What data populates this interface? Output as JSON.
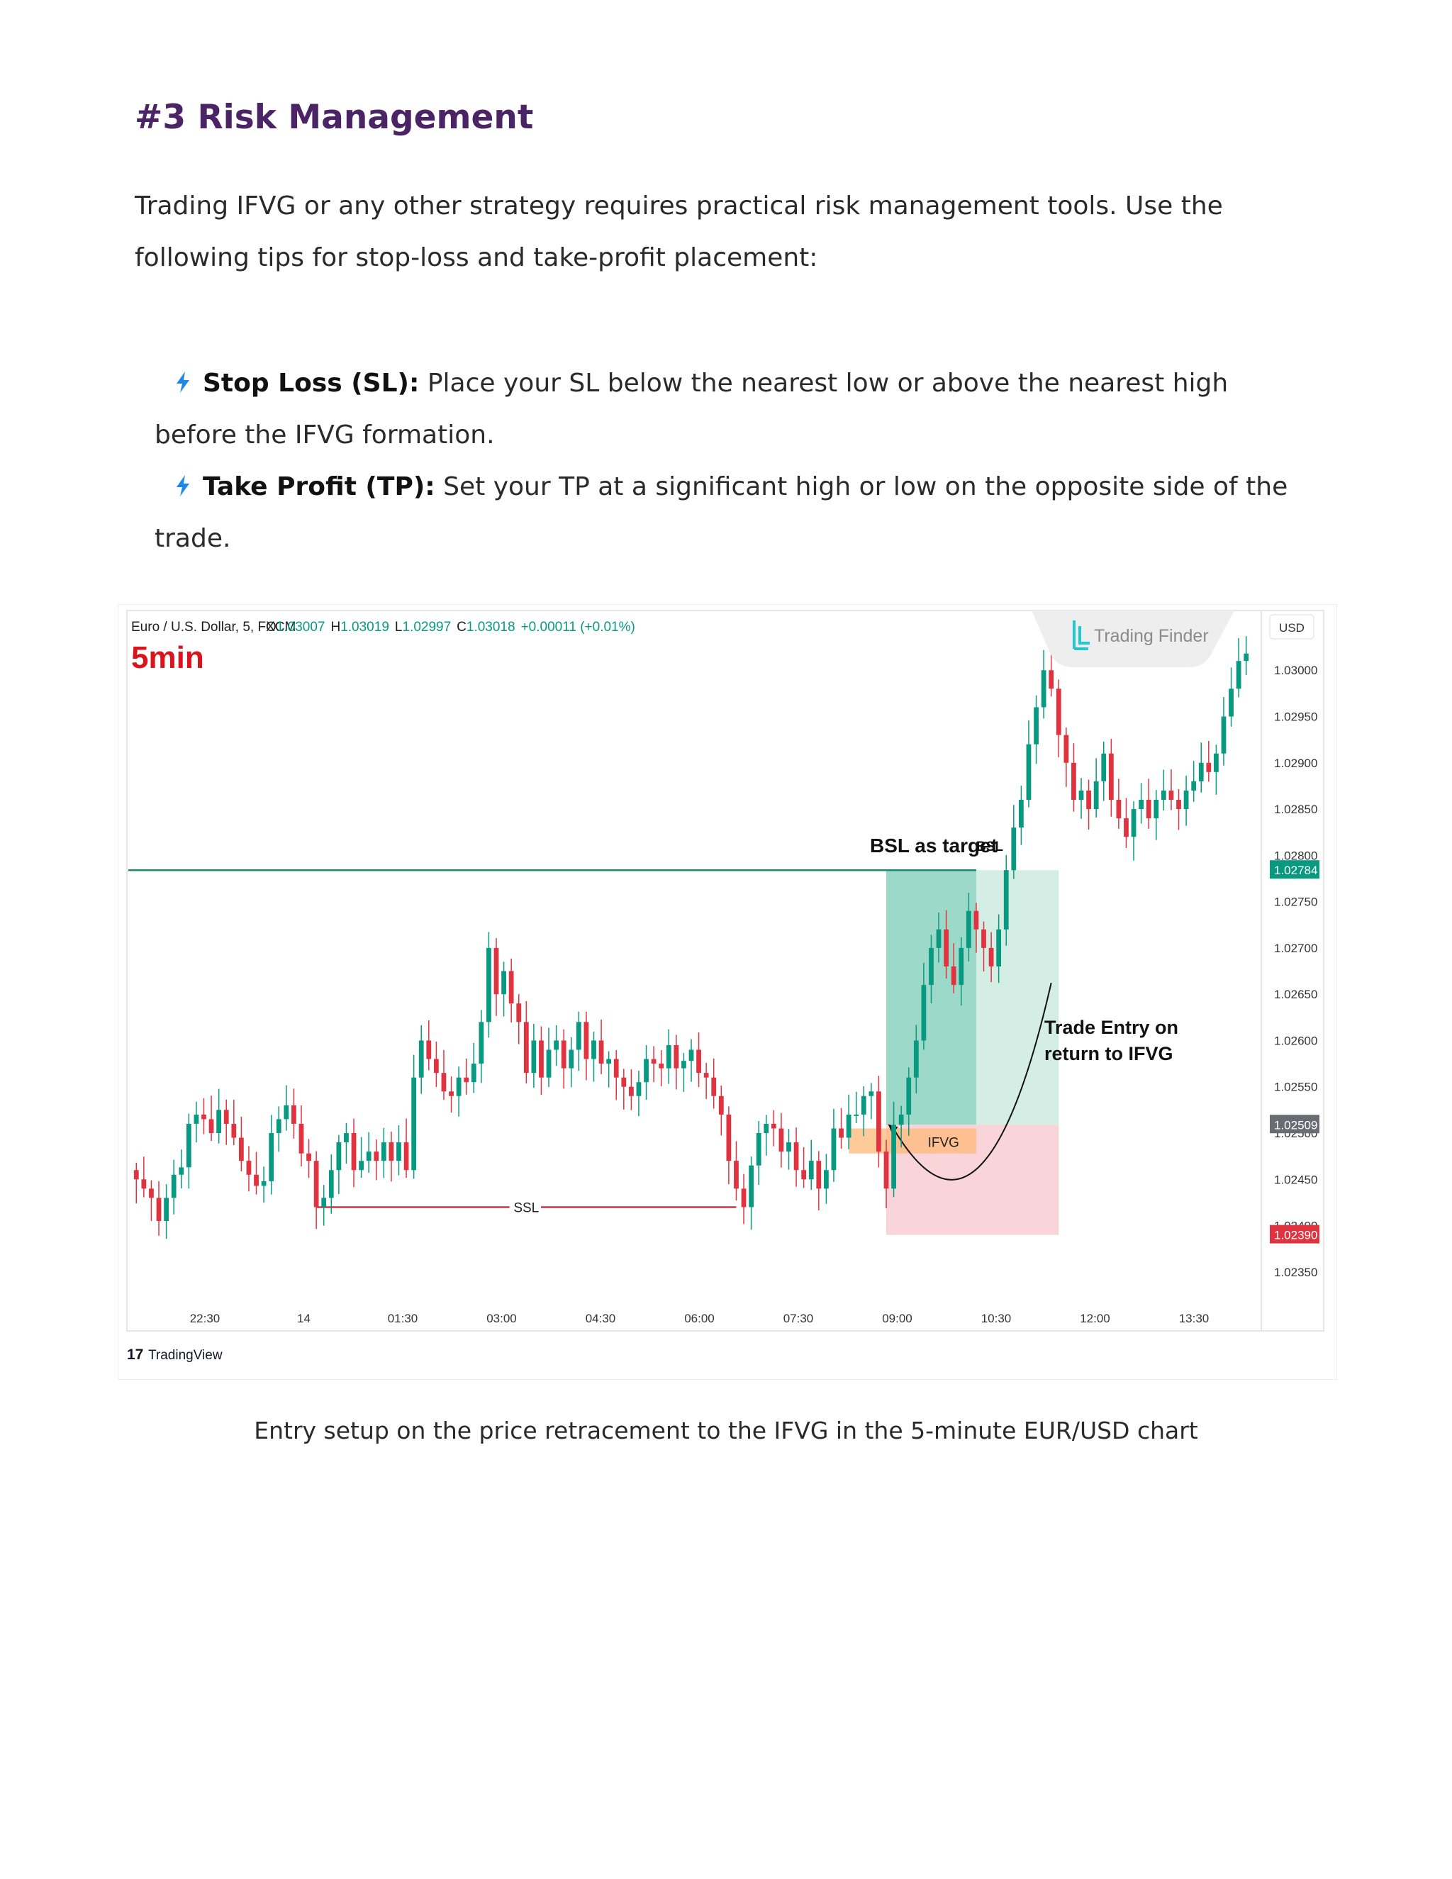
{
  "document": {
    "heading": "#3 Risk Management",
    "intro": "Trading IFVG or any other strategy requires practical risk management tools. Use the following tips for stop-loss and take-profit placement:",
    "tips": [
      {
        "icon": "lightning-bolt-icon",
        "label": "Stop Loss (SL):",
        "text": " Place your SL below the nearest low or above the nearest high before the IFVG formation."
      },
      {
        "icon": "lightning-bolt-icon",
        "label": "Take Profit (TP):",
        "text": " Set your TP at a significant high or low on the opposite side of the trade."
      }
    ],
    "caption": "Entry setup on the price retracement to the IFVG in the 5-minute EUR/USD chart"
  },
  "chart_data": {
    "type": "candlestick",
    "symbol": "Euro / U.S. Dollar, 5, FXCM",
    "ohlc": {
      "open_label": "O",
      "open": "1.03007",
      "high_label": "H",
      "high": "1.03019",
      "low_label": "L",
      "low": "1.02997",
      "close_label": "C",
      "close": "1.03018",
      "change": "+0.00011 (+0.01%)"
    },
    "timeframe_label": "5min",
    "watermark": "Trading Finder",
    "currency": "USD",
    "ylim": [
      1.0232,
      1.0304
    ],
    "y_ticks": [
      "1.03000",
      "1.02950",
      "1.02900",
      "1.02850",
      "1.02800",
      "1.02750",
      "1.02700",
      "1.02650",
      "1.02600",
      "1.02550",
      "1.02500",
      "1.02450",
      "1.02400",
      "1.02350"
    ],
    "x_ticks": [
      "22:30",
      "14",
      "01:30",
      "03:00",
      "04:30",
      "06:00",
      "07:30",
      "09:00",
      "10:30",
      "12:00",
      "13:30"
    ],
    "price_badges": [
      {
        "value": "1.02784",
        "color": "#089981"
      },
      {
        "value": "1.02509",
        "color": "#6b6b73"
      },
      {
        "value": "1.02390",
        "color": "#e03340"
      }
    ],
    "levels": {
      "bsl": 1.02784,
      "ssl": 1.0242,
      "entry": 1.02509,
      "stop": 1.0239,
      "ifvg_top": 1.02505,
      "ifvg_bottom": 1.02478
    },
    "annotations": {
      "bsl_target": "BSL as target",
      "bsl": "BSL",
      "ssl": "SSL",
      "ifvg": "IFVG",
      "entry_line1": "Trade Entry on",
      "entry_line2": "return to IFVG"
    },
    "footer_logo": "TradingView",
    "colors": {
      "up": "#089981",
      "down": "#e03340",
      "bsl_line": "#1e8a6e",
      "ssl_line": "#d6303f",
      "title": "#4b2466",
      "timeframe": "#d9141d",
      "bolt": "#1e88e5"
    },
    "series_close": [
      1.0245,
      1.0244,
      1.0243,
      1.02405,
      1.0243,
      1.02455,
      1.02463,
      1.0251,
      1.0252,
      1.02515,
      1.025,
      1.02525,
      1.0251,
      1.02495,
      1.0247,
      1.02455,
      1.02443,
      1.02448,
      1.025,
      1.02515,
      1.0253,
      1.0251,
      1.02478,
      1.0247,
      1.0242,
      1.0243,
      1.0246,
      1.0249,
      1.025,
      1.0246,
      1.0247,
      1.0248,
      1.0247,
      1.0249,
      1.0247,
      1.0249,
      1.0246,
      1.0256,
      1.026,
      1.0258,
      1.02565,
      1.02545,
      1.0254,
      1.0256,
      1.02555,
      1.02575,
      1.0262,
      1.027,
      1.0265,
      1.02675,
      1.0264,
      1.0262,
      1.02565,
      1.026,
      1.0256,
      1.0259,
      1.026,
      1.0257,
      1.0259,
      1.0262,
      1.0258,
      1.026,
      1.02575,
      1.0258,
      1.0256,
      1.0255,
      1.0254,
      1.02555,
      1.0258,
      1.02575,
      1.0257,
      1.02595,
      1.0257,
      1.02578,
      1.0259,
      1.02565,
      1.0256,
      1.0254,
      1.0252,
      1.0247,
      1.0244,
      1.0242,
      1.02465,
      1.025,
      1.0251,
      1.02505,
      1.0248,
      1.0249,
      1.0246,
      1.0245,
      1.0247,
      1.0244,
      1.0246,
      1.02505,
      1.02495,
      1.0252,
      1.0252,
      1.0254,
      1.02545,
      1.0248,
      1.0244,
      1.02509,
      1.0252,
      1.0256,
      1.026,
      1.0266,
      1.027,
      1.0272,
      1.0268,
      1.0266,
      1.027,
      1.0274,
      1.0272,
      1.027,
      1.0268,
      1.0272,
      1.02784,
      1.0283,
      1.0286,
      1.0292,
      1.0296,
      1.03,
      1.0298,
      1.0293,
      1.029,
      1.0286,
      1.0287,
      1.0285,
      1.0288,
      1.0291,
      1.0286,
      1.0284,
      1.0282,
      1.0285,
      1.0286,
      1.0284,
      1.0286,
      1.0287,
      1.0286,
      1.0285,
      1.0287,
      1.0288,
      1.029,
      1.0289,
      1.0291,
      1.0295,
      1.0298,
      1.0301,
      1.03018
    ]
  }
}
